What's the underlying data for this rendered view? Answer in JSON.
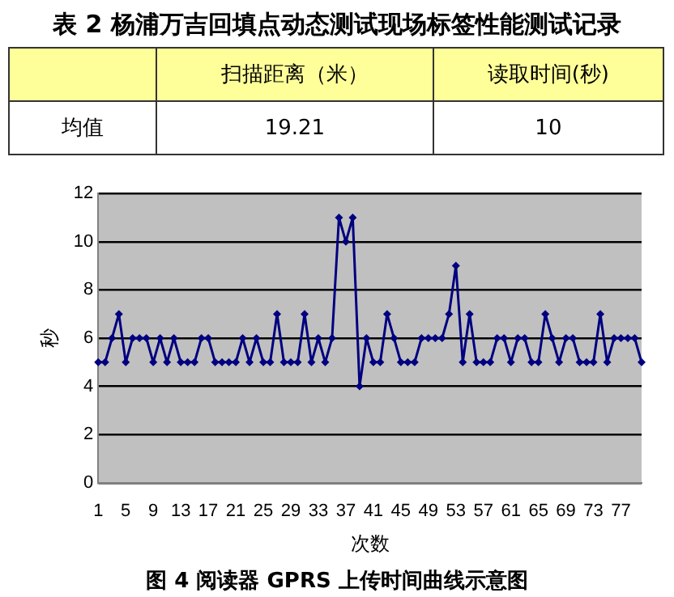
{
  "chart_data": {
    "type": "line",
    "title": "图 4 阅读器 GPRS 上传时间曲线示意图",
    "xlabel": "次数",
    "ylabel": "秒",
    "annotations": [
      "表 2 杨浦万吉回填点动态测试现场标签性能测试记录",
      "扫描距离（米）",
      "读取时间(秒)",
      "均值",
      "19.21",
      "10"
    ],
    "categories": [
      "1",
      null,
      null,
      null,
      "5",
      null,
      null,
      null,
      "9",
      null,
      null,
      null,
      "13",
      null,
      null,
      null,
      "17",
      null,
      null,
      null,
      "21",
      null,
      null,
      null,
      "25",
      null,
      null,
      null,
      "29",
      null,
      null,
      null,
      "33",
      null,
      null,
      null,
      "37",
      null,
      null,
      null,
      "41",
      null,
      null,
      null,
      "45",
      null,
      null,
      null,
      "49",
      null,
      null,
      null,
      "53",
      null,
      null,
      null,
      "57",
      null,
      null,
      null,
      "61",
      null,
      null,
      null,
      "65",
      null,
      null,
      null,
      "69",
      null,
      null,
      null,
      "73",
      null,
      null,
      null,
      "77",
      null,
      null,
      null
    ],
    "series": [
      {
        "color": "#000080",
        "values": [
          5,
          5,
          6,
          7,
          5,
          6,
          6,
          6,
          5,
          6,
          5,
          6,
          5,
          5,
          5,
          6,
          6,
          5,
          5,
          5,
          5,
          6,
          5,
          6,
          5,
          5,
          7,
          5,
          5,
          5,
          7,
          5,
          6,
          5,
          6,
          11,
          10,
          11,
          4,
          6,
          5,
          5,
          7,
          6,
          5,
          5,
          5,
          6,
          6,
          6,
          6,
          7,
          9,
          5,
          7,
          5,
          5,
          5,
          6,
          6,
          5,
          6,
          6,
          5,
          5,
          7,
          6,
          5,
          6,
          6,
          5,
          5,
          5,
          7,
          5,
          6,
          6,
          6,
          6,
          5
        ]
      }
    ],
    "ylim": [
      0,
      12
    ],
    "yticks": [
      0,
      2,
      4,
      6,
      8,
      10,
      12
    ],
    "grid": "y",
    "legend": false,
    "marker": "diamond",
    "line_style": "solid"
  }
}
